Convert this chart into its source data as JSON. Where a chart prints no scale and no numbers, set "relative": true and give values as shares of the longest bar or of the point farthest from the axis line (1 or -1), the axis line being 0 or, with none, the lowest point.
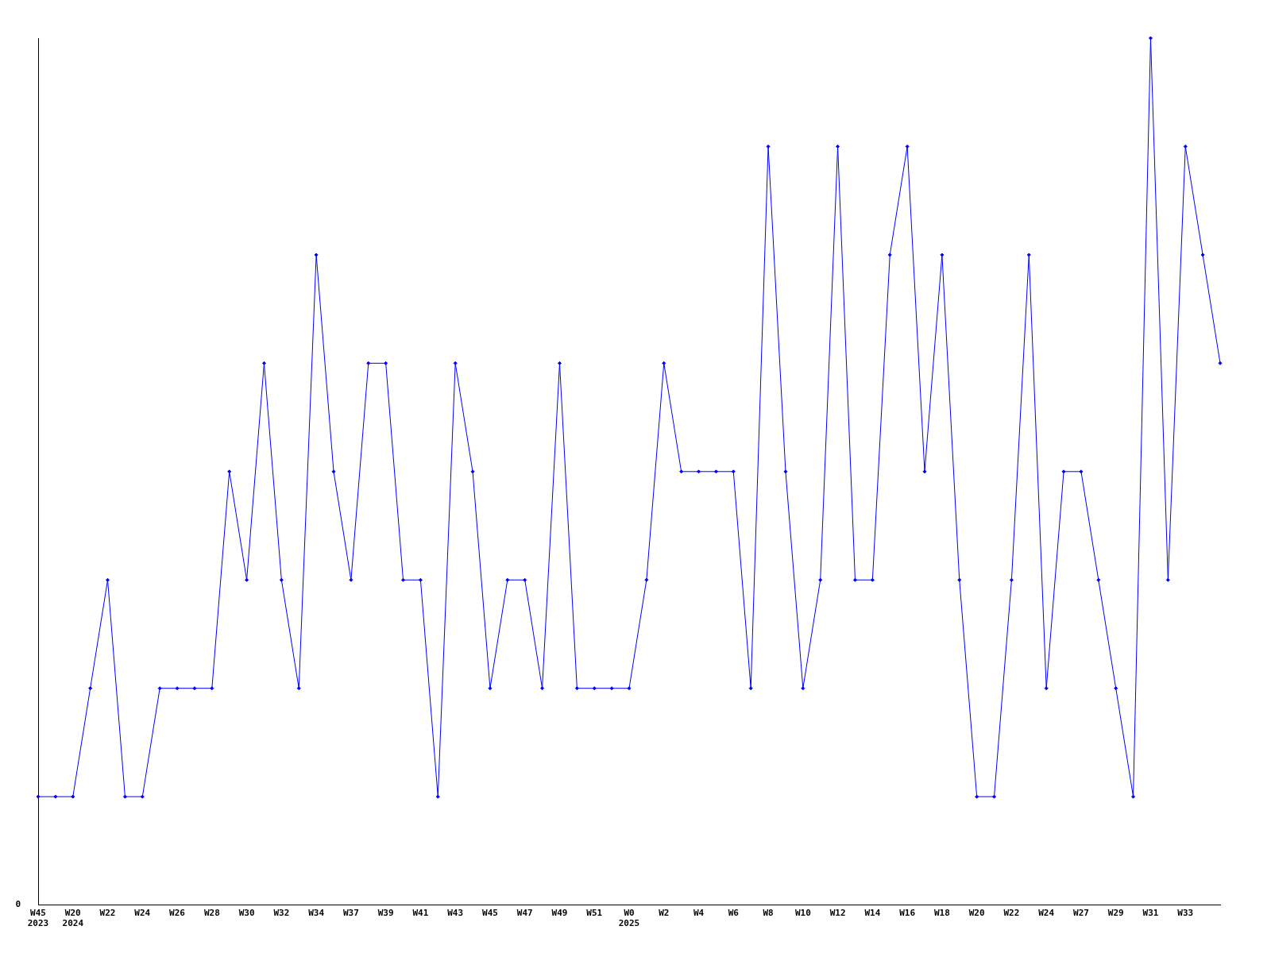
{
  "chart_data": {
    "type": "line",
    "relative": true,
    "color": "#0000ff",
    "marker": "diamond",
    "line_style": "solid",
    "grid": false,
    "legend": false,
    "categories": [
      "W45\n2023",
      null,
      "W20\n2024",
      null,
      "W22",
      null,
      "W24",
      null,
      "W26",
      null,
      "W28",
      null,
      "W30",
      null,
      "W32",
      null,
      "W34",
      null,
      "W37",
      null,
      "W39",
      null,
      "W41",
      null,
      "W43",
      null,
      "W45",
      null,
      "W47",
      null,
      "W49",
      null,
      "W51",
      null,
      "W0\n2025",
      null,
      "W2",
      null,
      "W4",
      null,
      "W6",
      null,
      "W8",
      null,
      "W10",
      null,
      "W12",
      null,
      "W14",
      null,
      "W16",
      null,
      "W18",
      null,
      "W20",
      null,
      "W22",
      null,
      "W24",
      null,
      "W27",
      null,
      "W29",
      null,
      "W31",
      null,
      "W33",
      null,
      null
    ],
    "values": [
      0.125,
      0.125,
      0.125,
      0.25,
      0.375,
      0.125,
      0.125,
      0.25,
      0.25,
      0.25,
      0.25,
      0.5,
      0.375,
      0.625,
      0.375,
      0.25,
      0.75,
      0.5,
      0.375,
      0.625,
      0.625,
      0.375,
      0.375,
      0.125,
      0.625,
      0.5,
      0.25,
      0.375,
      0.375,
      0.25,
      0.625,
      0.25,
      0.25,
      0.25,
      0.25,
      0.375,
      0.625,
      0.5,
      0.5,
      0.5,
      0.5,
      0.25,
      0.875,
      0.5,
      0.25,
      0.375,
      0.875,
      0.375,
      0.375,
      0.75,
      0.875,
      0.5,
      0.75,
      0.375,
      0.125,
      0.125,
      0.375,
      0.75,
      0.25,
      0.5,
      0.5,
      0.375,
      0.25,
      0.125,
      1,
      0.375,
      0.875,
      0.75,
      0.625
    ],
    "annotations": [
      "0"
    ]
  }
}
